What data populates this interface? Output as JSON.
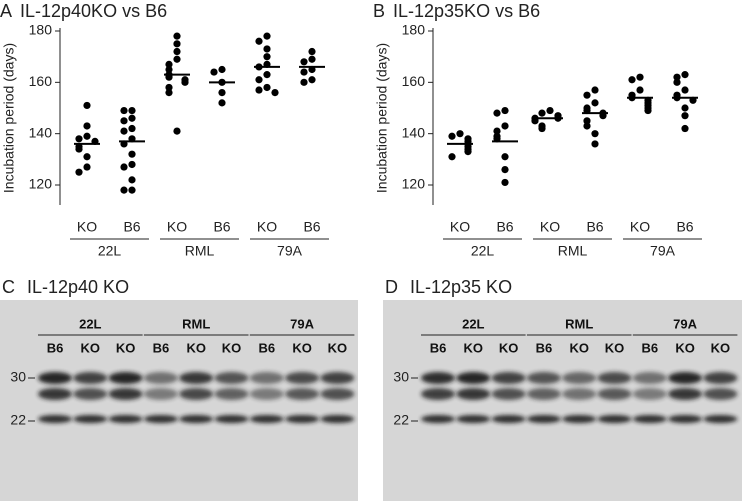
{
  "chart_data": [
    {
      "type": "strip",
      "panel": "A",
      "title": "IL-12p40KO vs B6",
      "ylabel": "Incubation period (days)",
      "ylim": [
        120,
        180
      ],
      "yticks": [
        120,
        140,
        160,
        180
      ],
      "categories": [
        "KO",
        "B6",
        "KO",
        "B6",
        "KO",
        "B6"
      ],
      "groups": [
        "22L",
        "RML",
        "79A"
      ],
      "color": "#000000",
      "values": [
        [
          151,
          143,
          139,
          138,
          137,
          135,
          134,
          131,
          127,
          125
        ],
        [
          149,
          149,
          146,
          145,
          142,
          141,
          138,
          136,
          132,
          128,
          127,
          122,
          118,
          118
        ],
        [
          178,
          175,
          172,
          169,
          167,
          165,
          163,
          162,
          161,
          160,
          158,
          156,
          141
        ],
        [
          165,
          164,
          160,
          156,
          152
        ],
        [
          178,
          176,
          173,
          170,
          167,
          166,
          163,
          161,
          158,
          157,
          156
        ],
        [
          172,
          169,
          168,
          165,
          164,
          161,
          160
        ]
      ],
      "means": [
        136,
        137,
        163,
        160,
        166,
        166
      ]
    },
    {
      "type": "strip",
      "panel": "B",
      "title": "IL-12p35KO vs B6",
      "ylabel": "Incubation period (days)",
      "ylim": [
        120,
        180
      ],
      "yticks": [
        120,
        140,
        160,
        180
      ],
      "categories": [
        "KO",
        "B6",
        "KO",
        "B6",
        "KO",
        "B6"
      ],
      "groups": [
        "22L",
        "RML",
        "79A"
      ],
      "color": "#000000",
      "values": [
        [
          140,
          139,
          138,
          137,
          136,
          135,
          134,
          133,
          131
        ],
        [
          149,
          148,
          143,
          141,
          139,
          138,
          131,
          126,
          121
        ],
        [
          149,
          148,
          147,
          146,
          146,
          145,
          143,
          142
        ],
        [
          157,
          155,
          152,
          150,
          149,
          148,
          147,
          145,
          143,
          140,
          136
        ],
        [
          162,
          161,
          157,
          155,
          154,
          153,
          152,
          151,
          150,
          149
        ],
        [
          163,
          162,
          160,
          157,
          155,
          154,
          153,
          150,
          147,
          142
        ]
      ],
      "means": [
        136,
        137,
        146,
        148,
        154,
        154
      ]
    }
  ],
  "blots": [
    {
      "panel": "C",
      "title": "IL-12p40 KO",
      "groups": [
        "22L",
        "RML",
        "79A"
      ],
      "lanes": [
        "B6",
        "KO",
        "KO",
        "B6",
        "KO",
        "KO",
        "B6",
        "KO",
        "KO"
      ],
      "markers": [
        "30",
        "22"
      ]
    },
    {
      "panel": "D",
      "title": "IL-12p35 KO",
      "groups": [
        "22L",
        "RML",
        "79A"
      ],
      "lanes": [
        "B6",
        "KO",
        "KO",
        "B6",
        "KO",
        "KO",
        "B6",
        "KO",
        "KO"
      ],
      "markers": [
        "30",
        "22"
      ]
    }
  ]
}
